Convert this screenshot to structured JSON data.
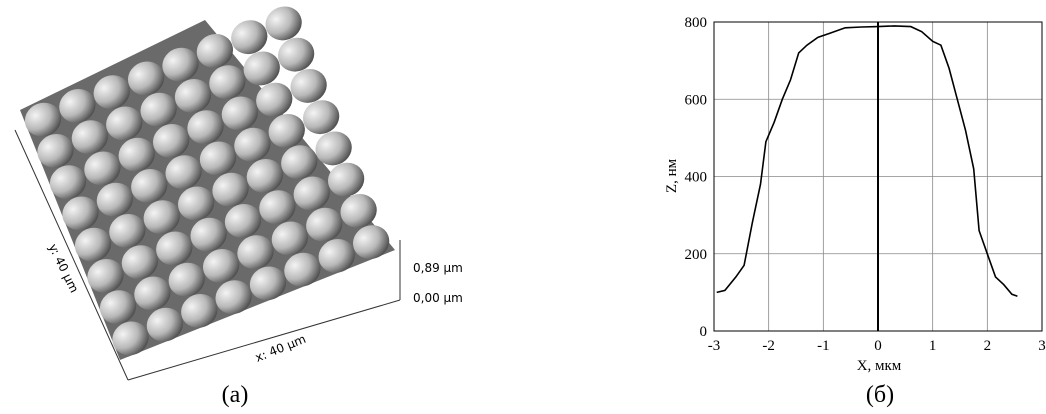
{
  "panel_a": {
    "y_axis_label": "y: 40 µm",
    "x_axis_label": "x: 40 µm",
    "z_max_label": "0,89 µm",
    "z_min_label": "0,00 µm",
    "caption": "(а)"
  },
  "chart_data": {
    "type": "line",
    "color": "#000000",
    "grid": true,
    "x": [
      -2.95,
      -2.8,
      -2.6,
      -2.45,
      -2.3,
      -2.15,
      -2.05,
      -1.9,
      -1.75,
      -1.6,
      -1.45,
      -1.3,
      -1.1,
      -0.9,
      -0.6,
      -0.3,
      0,
      0.3,
      0.6,
      0.8,
      1.0,
      1.15,
      1.3,
      1.45,
      1.6,
      1.75,
      1.85,
      2.0,
      2.15,
      2.3,
      2.45,
      2.55
    ],
    "values": [
      100,
      105,
      140,
      170,
      280,
      380,
      490,
      540,
      600,
      650,
      720,
      740,
      760,
      770,
      785,
      787,
      788,
      790,
      788,
      775,
      750,
      740,
      680,
      600,
      520,
      420,
      260,
      200,
      140,
      120,
      95,
      90
    ],
    "xlim": [
      -3,
      3
    ],
    "ylim": [
      0,
      800
    ],
    "xticks": [
      -3,
      -2,
      -1,
      0,
      1,
      2,
      3
    ],
    "yticks": [
      0,
      200,
      400,
      600,
      800
    ],
    "x_label": "X, мкм",
    "y_label": "Z, нм",
    "caption": "(б)"
  }
}
